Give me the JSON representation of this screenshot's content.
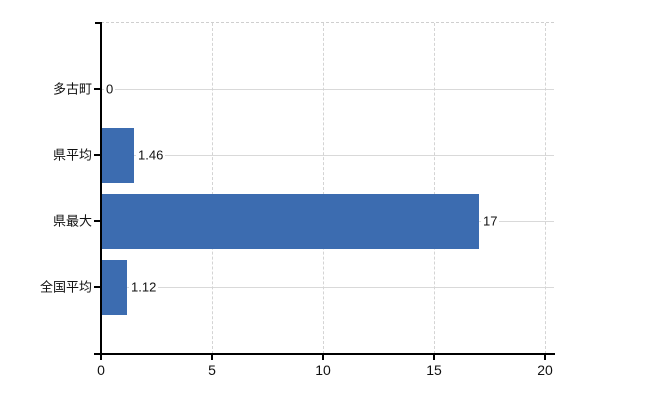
{
  "colors": {
    "bar": "#3C6CB0",
    "grid_horizontal": "#D9D9D9",
    "grid_vertical": "#D4D4D4",
    "axis": "#000000",
    "text": "#111111",
    "background": "#FFFFFF"
  },
  "chart_data": {
    "type": "bar",
    "orientation": "horizontal",
    "categories": [
      "多古町",
      "県平均",
      "県最大",
      "全国平均"
    ],
    "values": [
      0,
      1.46,
      17,
      1.12
    ],
    "value_labels": [
      "0",
      "1.46",
      "17",
      "1.12"
    ],
    "x_ticks": [
      0,
      5,
      10,
      15,
      20
    ],
    "x_tick_labels": [
      "0",
      "5",
      "10",
      "15",
      "20"
    ],
    "xlim": [
      0,
      20.4
    ],
    "grid": {
      "vertical": "dashed at x ticks",
      "horizontal": "solid at category centers",
      "top_border": "dashed"
    },
    "legend": "none",
    "title": ""
  }
}
